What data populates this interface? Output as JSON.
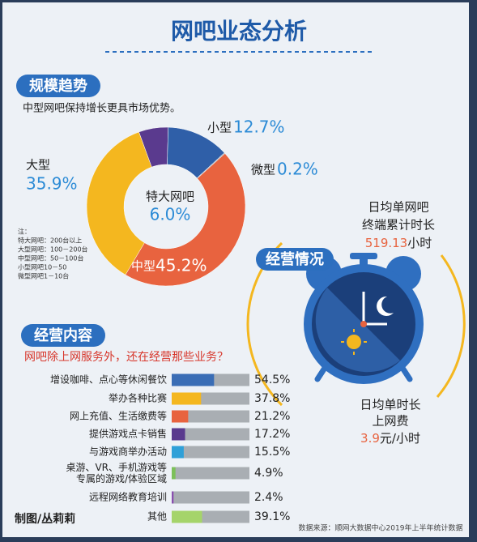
{
  "title": "网吧业态分析",
  "scale_section": {
    "header": "规模趋势",
    "subtitle": "中型网吧保持增长更具市场优势。",
    "note": [
      "注：",
      "特大网吧：200台以上",
      "大型网吧：100－200台",
      "中型网吧：50－100台",
      "小型网吧10－50",
      "微型网吧1－10台"
    ]
  },
  "business_section": {
    "header": "经营内容",
    "question": "网吧除上网服务外，还在经营那些业务？"
  },
  "operation_section": {
    "header": "经营情况",
    "daily_time": {
      "label": [
        "日均单网吧",
        "终端累计时长"
      ],
      "value": 519.13,
      "unit": "小时"
    },
    "hourly_fee": {
      "label": [
        "日均单时长",
        "上网费"
      ],
      "value": 3.9,
      "unit": "元/小时"
    }
  },
  "credit": "制图/丛莉莉",
  "source": "数据来源：顺网大数据中心2019年上半年统计数据",
  "chart_data": [
    {
      "type": "pie",
      "donut": true,
      "categories": [
        "特大网吧",
        "小型",
        "微型",
        "中型",
        "大型"
      ],
      "values": [
        6.0,
        12.7,
        0.2,
        45.2,
        35.9
      ],
      "value_labels": [
        "6.0%",
        "12.7%",
        "0.2%",
        "45.2%",
        "35.9%"
      ],
      "colors": [
        "#5a3a8e",
        "#2f5fa8",
        "#9aa3ad",
        "#e8633f",
        "#f4b71f"
      ]
    },
    {
      "type": "hbar",
      "categories": [
        "增设咖啡、点心等休闲餐饮",
        "举办各种比赛",
        "网上充值、生活缴费等",
        "提供游戏点卡销售",
        "与游戏商举办活动",
        "桌游、VR、手机游戏等\n专属的游戏/体验区域",
        "远程网络教育培训",
        "其他"
      ],
      "values": [
        54.5,
        37.8,
        21.2,
        17.2,
        15.5,
        4.9,
        2.4,
        39.1
      ],
      "value_labels": [
        "54.5%",
        "37.8%",
        "21.2%",
        "17.2%",
        "15.5%",
        "4.9%",
        "2.4%",
        "39.1%"
      ],
      "colors": [
        "#3a6db5",
        "#f4b71f",
        "#e8633f",
        "#5a3a8e",
        "#2fa0d8",
        "#7cc05a",
        "#8a4fb0",
        "#a5d46a"
      ],
      "xlim": [
        0,
        100
      ]
    }
  ]
}
